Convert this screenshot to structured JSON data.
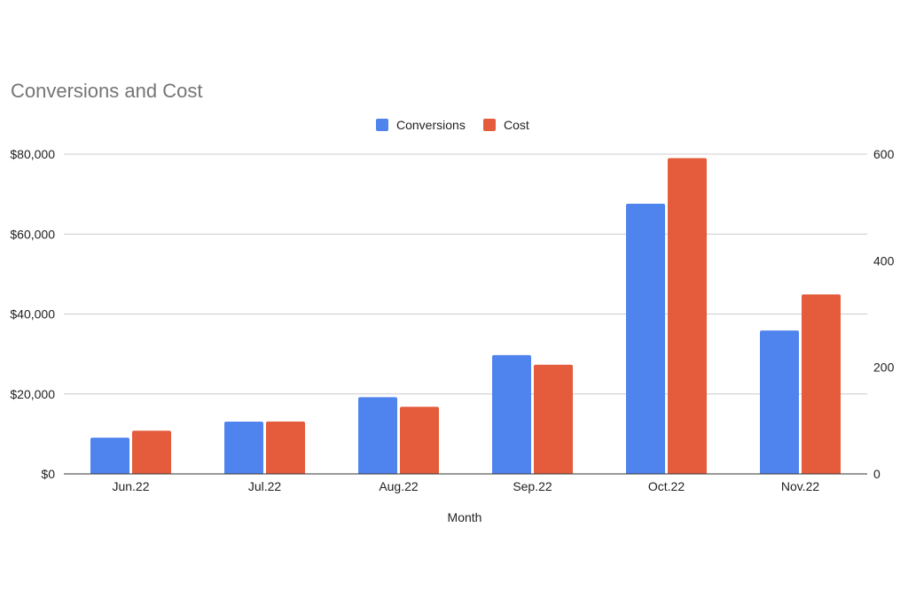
{
  "chart_data": {
    "type": "bar",
    "title": "Conversions and Cost",
    "xlabel": "Month",
    "ylabel_left": "",
    "ylabel_right": "",
    "categories": [
      "Jun.22",
      "Jul.22",
      "Aug.22",
      "Sep.22",
      "Oct.22",
      "Nov.22"
    ],
    "series": [
      {
        "name": "Conversions",
        "axis": "right",
        "color": "#4f83ed",
        "values": [
          68,
          98,
          144,
          223,
          507,
          269
        ]
      },
      {
        "name": "Cost",
        "axis": "left",
        "color": "#e45c3c",
        "values": [
          10800,
          13100,
          16800,
          27300,
          79000,
          44900
        ]
      }
    ],
    "left_axis": {
      "min": 0,
      "max": 80000,
      "ticks": [
        0,
        20000,
        40000,
        60000,
        80000
      ],
      "tick_labels": [
        "$0",
        "$20,000",
        "$40,000",
        "$60,000",
        "$80,000"
      ]
    },
    "right_axis": {
      "min": 0,
      "max": 600,
      "ticks": [
        0,
        200,
        400,
        600
      ],
      "tick_labels": [
        "0",
        "200",
        "400",
        "600"
      ]
    },
    "legend_position": "top",
    "grid": true
  }
}
